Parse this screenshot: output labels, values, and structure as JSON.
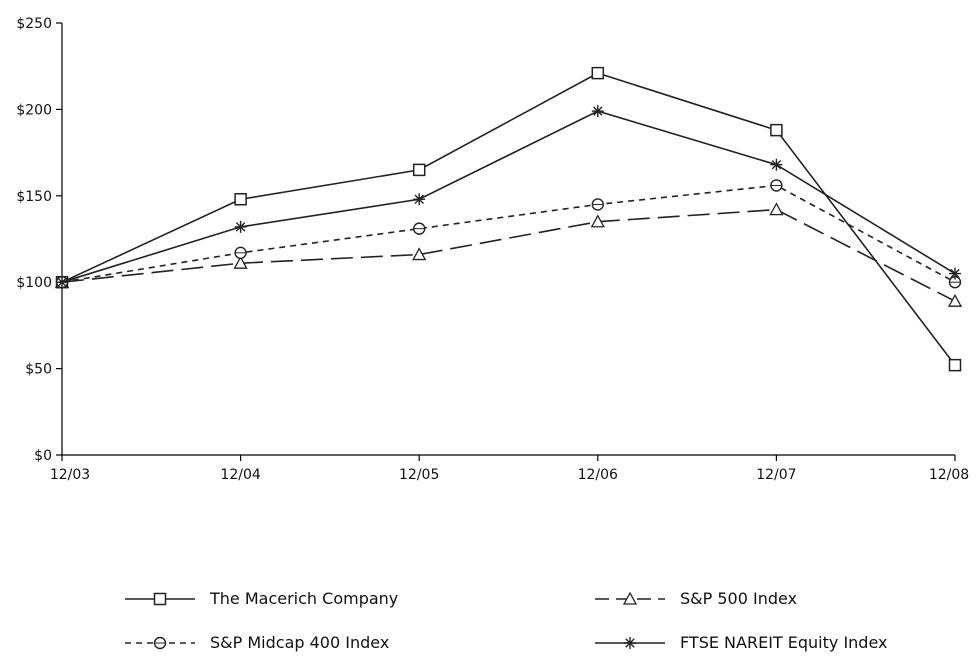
{
  "chart_data": {
    "type": "line",
    "title": "",
    "xlabel": "",
    "ylabel": "",
    "categories": [
      "12/03",
      "12/04",
      "12/05",
      "12/06",
      "12/07",
      "12/08"
    ],
    "ylim": [
      0,
      250
    ],
    "y_ticks": [
      0,
      50,
      100,
      150,
      200,
      250
    ],
    "y_tick_labels": [
      "$0",
      "$50",
      "$100",
      "$150",
      "$200",
      "$250"
    ],
    "grid": false,
    "legend": "bottom",
    "series": [
      {
        "name": "The Macerich Company",
        "values": [
          100,
          148,
          165,
          221,
          188,
          52
        ],
        "marker": "square",
        "dash": "solid",
        "color": "#222222"
      },
      {
        "name": "S&P 500 Index",
        "values": [
          100,
          111,
          116,
          135,
          142,
          89
        ],
        "marker": "triangle",
        "dash": "long-dash",
        "color": "#222222"
      },
      {
        "name": "S&P Midcap 400 Index",
        "values": [
          100,
          117,
          131,
          145,
          156,
          100
        ],
        "marker": "circle",
        "dash": "short-dash",
        "color": "#222222"
      },
      {
        "name": "FTSE NAREIT Equity Index",
        "values": [
          100,
          132,
          148,
          199,
          168,
          105
        ],
        "marker": "asterisk",
        "dash": "solid",
        "color": "#222222"
      }
    ]
  }
}
